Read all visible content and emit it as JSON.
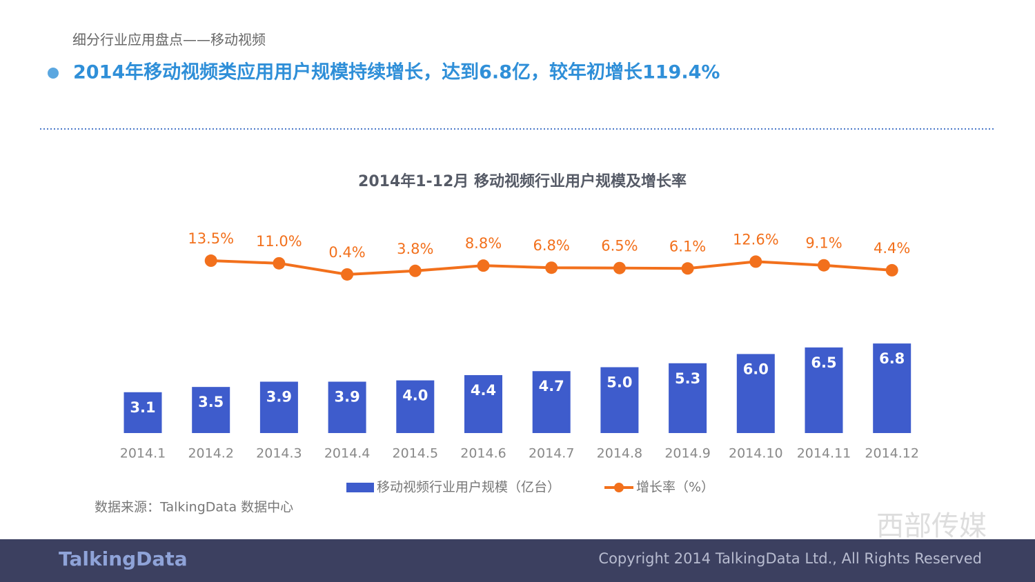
{
  "header": {
    "section": "细分行业应用盘点——移动视频",
    "headline": "2014年移动视频类应用用户规模持续增长，达到6.8亿，较年初增长119.4%"
  },
  "chart_data": {
    "type": "bar_line",
    "title": "2014年1-12月 移动视频行业用户规模及增长率",
    "categories": [
      "2014.1",
      "2014.2",
      "2014.3",
      "2014.4",
      "2014.5",
      "2014.6",
      "2014.7",
      "2014.8",
      "2014.9",
      "2014.10",
      "2014.11",
      "2014.12"
    ],
    "series": [
      {
        "name": "移动视频行业用户规模（亿台）",
        "color": "#3e5ccc",
        "values": [
          3.1,
          3.5,
          3.9,
          3.9,
          4.0,
          4.4,
          4.7,
          5.0,
          5.3,
          6.0,
          6.5,
          6.8
        ],
        "value_labels": [
          "3.1",
          "3.5",
          "3.9",
          "3.9",
          "4.0",
          "4.4",
          "4.7",
          "5.0",
          "5.3",
          "6.0",
          "6.5",
          "6.8"
        ]
      },
      {
        "name": "增长率（%）",
        "color": "#f2701c",
        "axis": "y2",
        "values": [
          null,
          13.5,
          11.0,
          0.4,
          3.8,
          8.8,
          6.8,
          6.5,
          6.1,
          12.6,
          9.1,
          4.4
        ],
        "value_labels": [
          null,
          "13.5%",
          "11.0%",
          "0.4%",
          "3.8%",
          "8.8%",
          "6.8%",
          "6.5%",
          "6.1%",
          "12.6%",
          "9.1%",
          "4.4%"
        ]
      }
    ],
    "ylim": [
      0,
      10
    ],
    "y2lim": [
      0,
      40
    ],
    "legend": "bottom"
  },
  "source": "数据来源：TalkingData 数据中心",
  "footer": {
    "copyright": "Copyright 2014 TalkingData Ltd., All Rights Reserved",
    "logo": "TalkingData",
    "watermark": "西部传媒"
  }
}
